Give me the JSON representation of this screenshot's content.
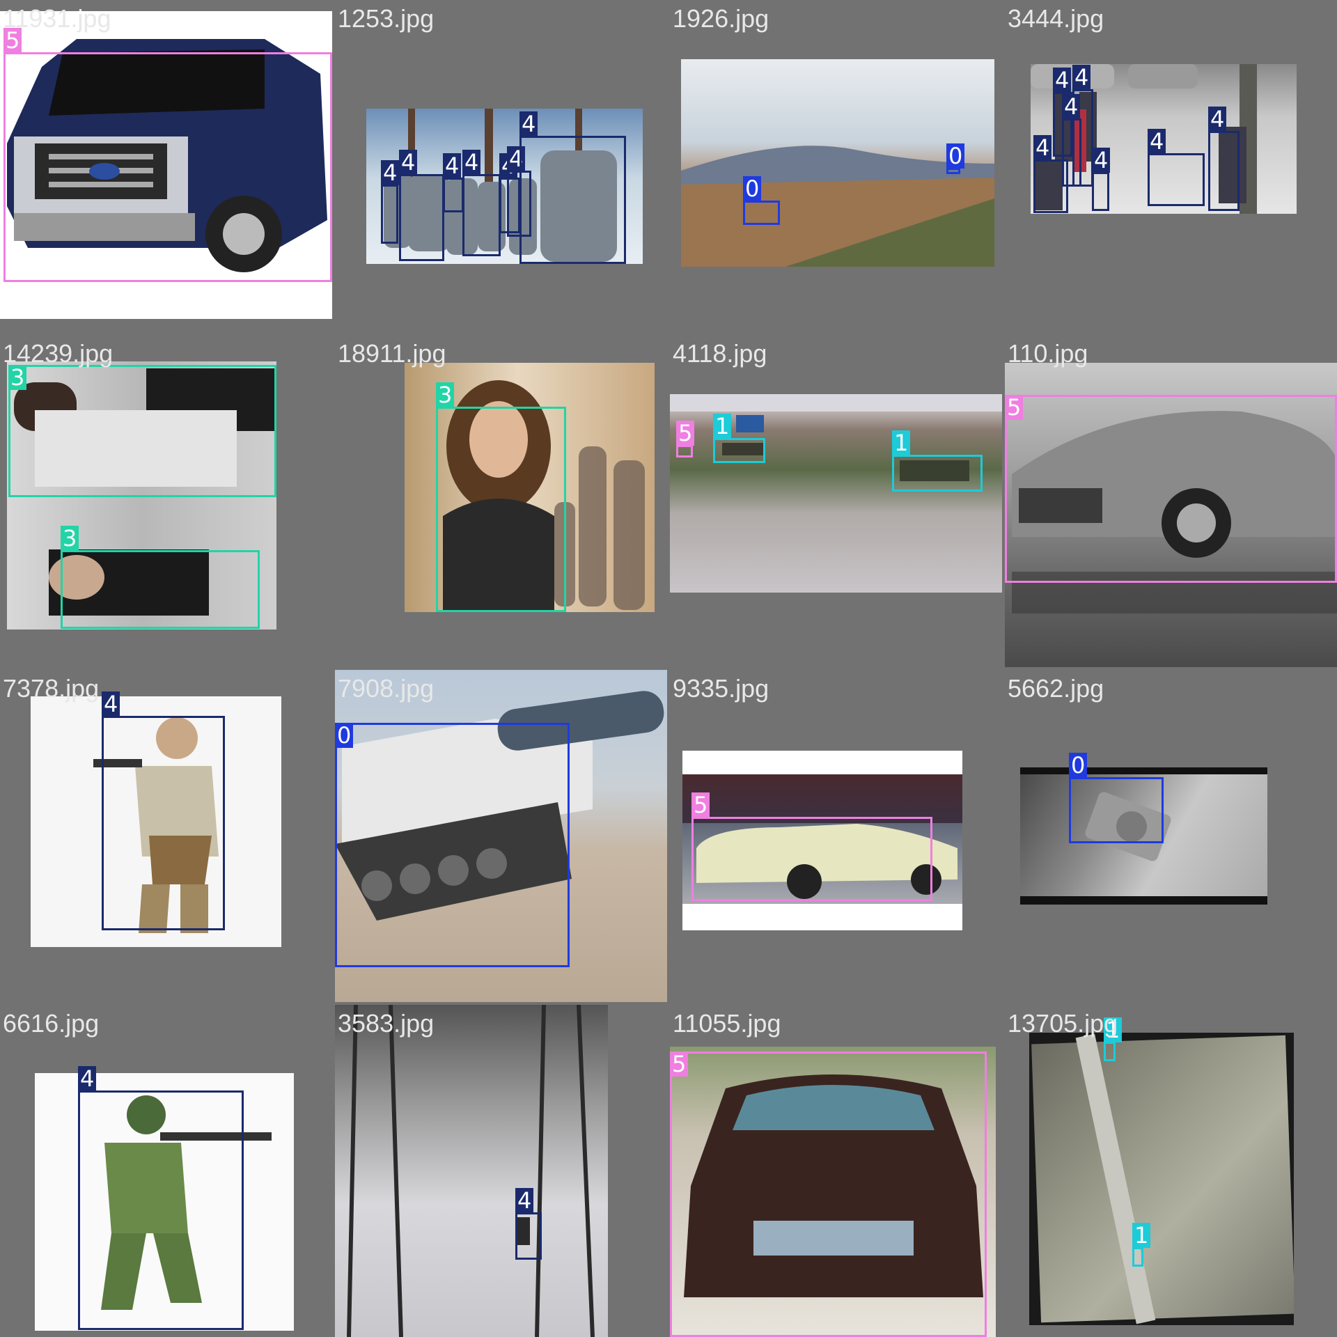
{
  "class_colors": {
    "0": "#1f3adf",
    "1": "#1dcbd9",
    "3": "#22d4a6",
    "4": "#1a2a6c",
    "5": "#ef7fe0"
  },
  "tiles": [
    {
      "filename": "11931.jpg",
      "boxes": [
        {
          "label": "5"
        }
      ]
    },
    {
      "filename": "1253.jpg",
      "boxes": [
        {
          "label": "4"
        },
        {
          "label": "4"
        },
        {
          "label": "4"
        },
        {
          "label": "4"
        },
        {
          "label": "4"
        },
        {
          "label": "4"
        },
        {
          "label": "4"
        }
      ]
    },
    {
      "filename": "1926.jpg",
      "boxes": [
        {
          "label": "0"
        },
        {
          "label": "0"
        }
      ]
    },
    {
      "filename": "3444.jpg",
      "boxes": [
        {
          "label": "4"
        },
        {
          "label": "4"
        },
        {
          "label": "4"
        },
        {
          "label": "4"
        },
        {
          "label": "4"
        },
        {
          "label": "4"
        },
        {
          "label": "4"
        }
      ]
    },
    {
      "filename": "14239.jpg",
      "boxes": [
        {
          "label": "3"
        },
        {
          "label": "3"
        }
      ]
    },
    {
      "filename": "18911.jpg",
      "boxes": [
        {
          "label": "3"
        }
      ]
    },
    {
      "filename": "4118.jpg",
      "boxes": [
        {
          "label": "5"
        },
        {
          "label": "1"
        },
        {
          "label": "1"
        }
      ]
    },
    {
      "filename": "110.jpg",
      "boxes": [
        {
          "label": "5"
        }
      ]
    },
    {
      "filename": "7378.jpg",
      "boxes": [
        {
          "label": "4"
        }
      ]
    },
    {
      "filename": "7908.jpg",
      "boxes": [
        {
          "label": "0"
        }
      ]
    },
    {
      "filename": "9335.jpg",
      "boxes": [
        {
          "label": "5"
        }
      ]
    },
    {
      "filename": "5662.jpg",
      "boxes": [
        {
          "label": "0"
        }
      ]
    },
    {
      "filename": "6616.jpg",
      "boxes": [
        {
          "label": "4"
        }
      ]
    },
    {
      "filename": "3583.jpg",
      "boxes": [
        {
          "label": "4"
        }
      ]
    },
    {
      "filename": "11055.jpg",
      "boxes": [
        {
          "label": "5"
        }
      ]
    },
    {
      "filename": "13705.jpg",
      "boxes": [
        {
          "label": "1"
        },
        {
          "label": "1"
        }
      ]
    }
  ]
}
